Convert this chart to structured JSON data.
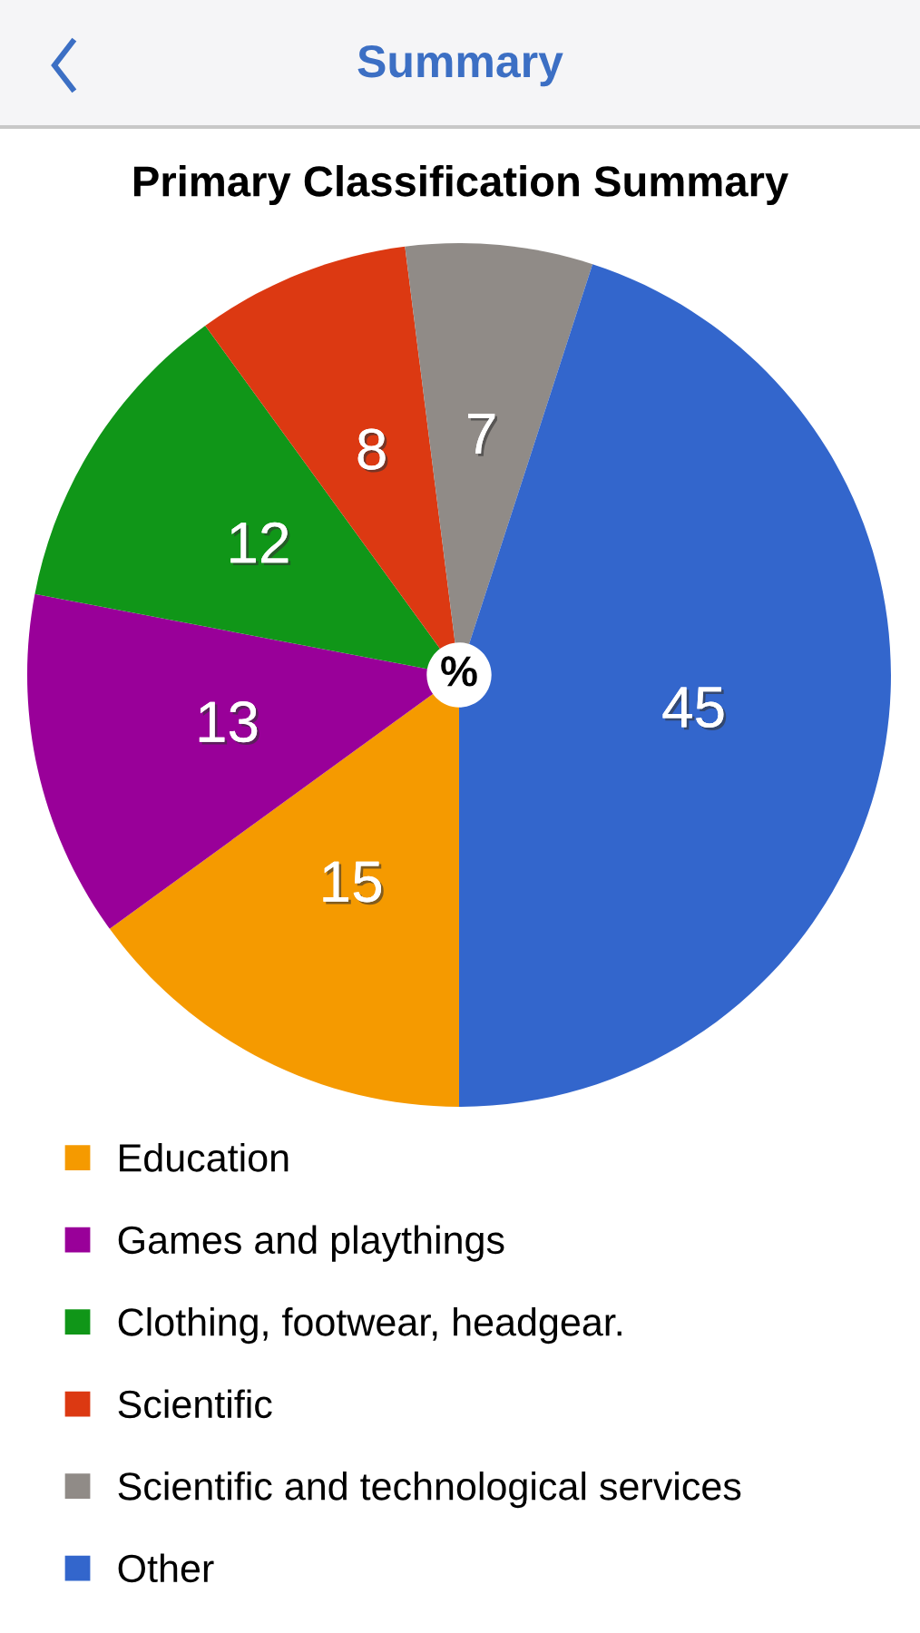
{
  "chart_data": {
    "type": "pie",
    "title": "Primary Classification Summary",
    "annotations": [
      "Summary",
      "%"
    ],
    "categories": [
      "Education",
      "Games and playthings",
      "Clothing, footwear, headgear.",
      "Scientific",
      "Scientific and technological services",
      "Other"
    ],
    "values": [
      15,
      13,
      12,
      8,
      7,
      45
    ],
    "colors": [
      "#f59a00",
      "#990099",
      "#109618",
      "#dc3912",
      "#908b87",
      "#3366cc"
    ],
    "data_labels": true,
    "legend": "bottom"
  }
}
